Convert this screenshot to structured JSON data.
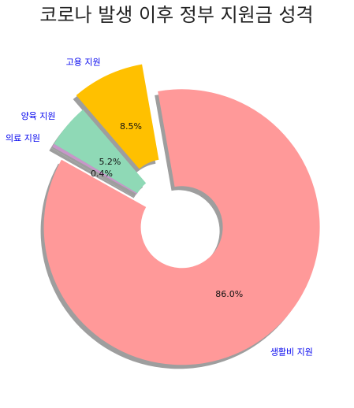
{
  "chart_data": {
    "type": "pie",
    "title": "코로나 발생 이후 정부 지원금 성격",
    "categories": [
      "생활비 지원",
      "의료 지원",
      "양육 지원",
      "고용 지원"
    ],
    "values": [
      86.0,
      0.4,
      5.2,
      8.5
    ],
    "value_labels": [
      "86.0%",
      "0.4%",
      "5.2%",
      "8.5%"
    ],
    "colors": [
      "#ff9999",
      "#c797c9",
      "#8fd9b6",
      "#ffc000"
    ],
    "label_color": "#0000ee",
    "exploded": [
      true,
      false,
      false,
      true
    ],
    "donut": true,
    "shadow": true,
    "legend": "none"
  }
}
